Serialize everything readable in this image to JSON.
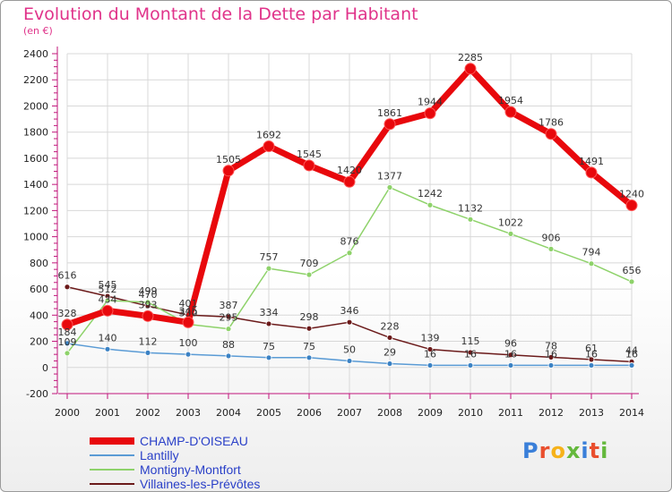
{
  "title": "Evolution du Montant de la Dette par Habitant",
  "subtitle": "(en €)",
  "logo": "Proxiti",
  "chart_data": {
    "type": "line",
    "title": "Evolution du Montant de la Dette par Habitant",
    "subtitle": "(en €)",
    "ylim": [
      -200,
      2400
    ],
    "y_ticks": [
      -200,
      0,
      200,
      400,
      600,
      800,
      1000,
      1200,
      1400,
      1600,
      1800,
      2000,
      2200,
      2400
    ],
    "x": [
      "2000",
      "2001",
      "2002",
      "2003",
      "2004",
      "2005",
      "2006",
      "2007",
      "2008",
      "2009",
      "2010",
      "2011",
      "2012",
      "2013",
      "2014"
    ],
    "grid": true,
    "legend_position": "bottom-left",
    "series": [
      {
        "name": "Villaines-les-Prévôtes",
        "color": "#6b1a1a",
        "values": [
          616,
          545,
          470,
          401,
          387,
          334,
          298,
          346,
          228,
          139,
          115,
          96,
          78,
          61,
          44
        ]
      },
      {
        "name": "Lantilly",
        "color": "#5a9bd5",
        "values": [
          184,
          140,
          112,
          100,
          88,
          75,
          75,
          50,
          29,
          16,
          16,
          16,
          16,
          16,
          16
        ]
      },
      {
        "name": "Montigny-Montfort",
        "color": "#8ed26a",
        "values": [
          109,
          512,
          499,
          330,
          295,
          757,
          709,
          876,
          1377,
          1242,
          1132,
          1022,
          906,
          794,
          656
        ]
      },
      {
        "name": "CHAMP-D'OISEAU",
        "color": "#e8080c",
        "values": [
          328,
          434,
          393,
          345,
          1505,
          1692,
          1545,
          1420,
          1861,
          1944,
          2285,
          1954,
          1786,
          1491,
          1240
        ]
      }
    ]
  }
}
